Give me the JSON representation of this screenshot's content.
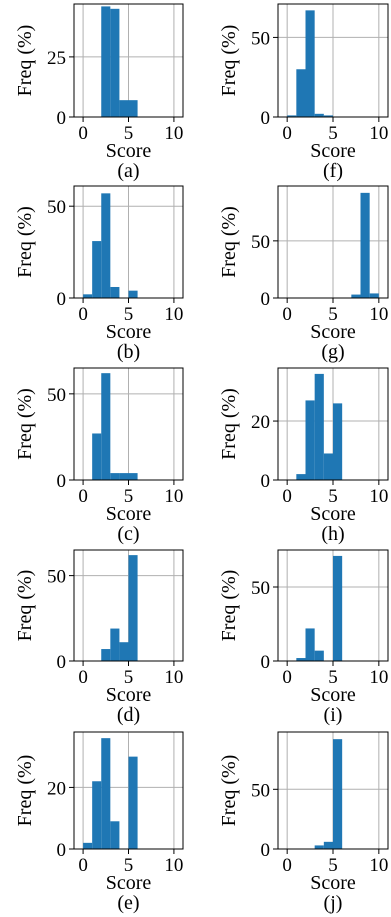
{
  "chart_data": [
    {
      "id": "a",
      "type": "bar",
      "caption": "(a)",
      "xlabel": "Score",
      "ylabel": "Freq (%)",
      "xlim": [
        -1,
        11
      ],
      "ylim": [
        0,
        47
      ],
      "xticks": [
        "0",
        "5",
        "10"
      ],
      "yticks": [
        0,
        25
      ],
      "bins": [
        [
          2,
          3
        ],
        [
          3,
          4
        ],
        [
          4,
          5
        ],
        [
          5,
          6
        ]
      ],
      "values": [
        46,
        45,
        7,
        7
      ],
      "grid": true,
      "color": "#1f77b4"
    },
    {
      "id": "f",
      "type": "bar",
      "caption": "(f)",
      "xlabel": "Score",
      "ylabel": "Freq (%)",
      "xlim": [
        -1,
        11
      ],
      "ylim": [
        0,
        71
      ],
      "xticks": [
        "0",
        "5",
        "10"
      ],
      "yticks": [
        0,
        50
      ],
      "bins": [
        [
          0,
          1
        ],
        [
          1,
          2
        ],
        [
          2,
          3
        ],
        [
          3,
          4
        ],
        [
          4,
          5
        ]
      ],
      "values": [
        1,
        30,
        67,
        2,
        1
      ],
      "grid": true,
      "color": "#1f77b4"
    },
    {
      "id": "b",
      "type": "bar",
      "caption": "(b)",
      "xlabel": "Score",
      "ylabel": "Freq (%)",
      "xlim": [
        -1,
        11
      ],
      "ylim": [
        0,
        61
      ],
      "xticks": [
        "0",
        "5",
        "10"
      ],
      "yticks": [
        0,
        50
      ],
      "bins": [
        [
          0,
          1
        ],
        [
          1,
          2
        ],
        [
          2,
          3
        ],
        [
          3,
          4
        ],
        [
          4,
          5
        ],
        [
          5,
          6
        ]
      ],
      "values": [
        2,
        31,
        57,
        6,
        0,
        4
      ],
      "grid": true,
      "color": "#1f77b4"
    },
    {
      "id": "g",
      "type": "bar",
      "caption": "(g)",
      "xlabel": "Score",
      "ylabel": "Freq (%)",
      "xlim": [
        -1,
        11
      ],
      "ylim": [
        0,
        98
      ],
      "xticks": [
        "0",
        "5",
        "10"
      ],
      "yticks": [
        0,
        50
      ],
      "bins": [
        [
          7,
          8
        ],
        [
          8,
          9
        ],
        [
          9,
          10
        ]
      ],
      "values": [
        3,
        92,
        4
      ],
      "grid": true,
      "color": "#1f77b4"
    },
    {
      "id": "c",
      "type": "bar",
      "caption": "(c)",
      "xlabel": "Score",
      "ylabel": "Freq (%)",
      "xlim": [
        -1,
        11
      ],
      "ylim": [
        0,
        65
      ],
      "xticks": [
        "0",
        "5",
        "10"
      ],
      "yticks": [
        0,
        50
      ],
      "bins": [
        [
          1,
          2
        ],
        [
          2,
          3
        ],
        [
          3,
          4
        ],
        [
          4,
          5
        ],
        [
          5,
          6
        ]
      ],
      "values": [
        27,
        62,
        4,
        4,
        4
      ],
      "grid": true,
      "color": "#1f77b4"
    },
    {
      "id": "h",
      "type": "bar",
      "caption": "(h)",
      "xlabel": "Score",
      "ylabel": "Freq (%)",
      "xlim": [
        -1,
        11
      ],
      "ylim": [
        0,
        38
      ],
      "xticks": [
        "0",
        "5",
        "10"
      ],
      "yticks": [
        0,
        20
      ],
      "bins": [
        [
          1,
          2
        ],
        [
          2,
          3
        ],
        [
          3,
          4
        ],
        [
          4,
          5
        ],
        [
          5,
          6
        ]
      ],
      "values": [
        2,
        27,
        36,
        9,
        26
      ],
      "grid": true,
      "color": "#1f77b4"
    },
    {
      "id": "d",
      "type": "bar",
      "caption": "(d)",
      "xlabel": "Score",
      "ylabel": "Freq (%)",
      "xlim": [
        -1,
        11
      ],
      "ylim": [
        0,
        65
      ],
      "xticks": [
        "0",
        "5",
        "10"
      ],
      "yticks": [
        0,
        50
      ],
      "bins": [
        [
          2,
          3
        ],
        [
          3,
          4
        ],
        [
          4,
          5
        ],
        [
          5,
          6
        ]
      ],
      "values": [
        7,
        19,
        11,
        62
      ],
      "grid": true,
      "color": "#1f77b4"
    },
    {
      "id": "i",
      "type": "bar",
      "caption": "(i)",
      "xlabel": "Score",
      "ylabel": "Freq (%)",
      "xlim": [
        -1,
        11
      ],
      "ylim": [
        0,
        75
      ],
      "xticks": [
        "0",
        "5",
        "10"
      ],
      "yticks": [
        0,
        50
      ],
      "bins": [
        [
          1,
          2
        ],
        [
          2,
          3
        ],
        [
          3,
          4
        ],
        [
          4,
          5
        ],
        [
          5,
          6
        ]
      ],
      "values": [
        2,
        22,
        7,
        0,
        71
      ],
      "grid": true,
      "color": "#1f77b4"
    },
    {
      "id": "e",
      "type": "bar",
      "caption": "(e)",
      "xlabel": "Score",
      "ylabel": "Freq (%)",
      "xlim": [
        -1,
        11
      ],
      "ylim": [
        0,
        38
      ],
      "xticks": [
        "0",
        "5",
        "10"
      ],
      "yticks": [
        0,
        20
      ],
      "bins": [
        [
          0,
          1
        ],
        [
          1,
          2
        ],
        [
          2,
          3
        ],
        [
          3,
          4
        ],
        [
          4,
          5
        ],
        [
          5,
          6
        ]
      ],
      "values": [
        2,
        22,
        36,
        9,
        0,
        30
      ],
      "grid": true,
      "color": "#1f77b4"
    },
    {
      "id": "j",
      "type": "bar",
      "caption": "(j)",
      "xlabel": "Score",
      "ylabel": "Freq (%)",
      "xlim": [
        -1,
        11
      ],
      "ylim": [
        0,
        98
      ],
      "xticks": [
        "0",
        "5",
        "10"
      ],
      "yticks": [
        0,
        50
      ],
      "bins": [
        [
          3,
          4
        ],
        [
          4,
          5
        ],
        [
          5,
          6
        ]
      ],
      "values": [
        3,
        6,
        92
      ],
      "grid": true,
      "color": "#1f77b4"
    }
  ]
}
